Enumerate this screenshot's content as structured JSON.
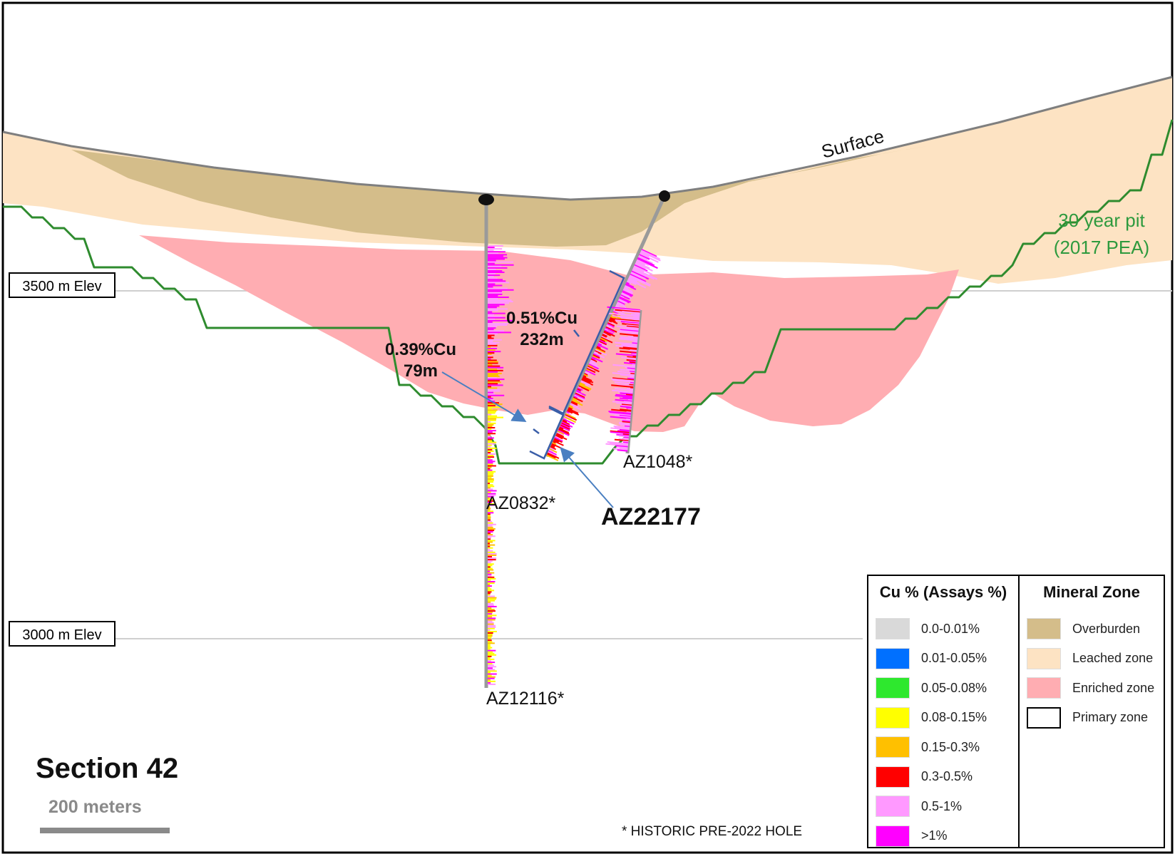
{
  "section_title": "Section 42",
  "scale_bar_label": "200 meters",
  "surface_label": "Surface",
  "pit_label_line1": "30 year pit",
  "pit_label_line2": "(2017 PEA)",
  "elevation_labels": [
    "3500 m Elev",
    "3000 m Elev"
  ],
  "holes": {
    "az0832": "AZ0832*",
    "az12116": "AZ12116*",
    "az1048": "AZ1048*",
    "az22177": "AZ22177"
  },
  "intercepts": {
    "upper": {
      "grade": "0.51%Cu",
      "length": "232m"
    },
    "lower": {
      "grade": "0.39%Cu",
      "length": "79m"
    }
  },
  "footnote": "* HISTORIC PRE-2022 HOLE",
  "legend": {
    "cu_title": "Cu % (Assays %)",
    "cu_items": [
      {
        "label": "0.0-0.01%",
        "color": "#d9d9d9"
      },
      {
        "label": "0.01-0.05%",
        "color": "#0070ff"
      },
      {
        "label": "0.05-0.08%",
        "color": "#2ee82e"
      },
      {
        "label": "0.08-0.15%",
        "color": "#ffff00"
      },
      {
        "label": "0.15-0.3%",
        "color": "#ffc000"
      },
      {
        "label": "0.3-0.5%",
        "color": "#ff0000"
      },
      {
        "label": "0.5-1%",
        "color": "#ff99ff"
      },
      {
        "label": ">1%",
        "color": "#ff00ff"
      }
    ],
    "zone_title": "Mineral Zone",
    "zone_items": [
      {
        "label": "Overburden",
        "color": "#d4bd8a"
      },
      {
        "label": "Leached zone",
        "color": "#fde3c3"
      },
      {
        "label": "Enriched zone",
        "color": "#ffadb2"
      },
      {
        "label": "Primary zone",
        "color": "#ffffff"
      }
    ]
  },
  "colors": {
    "pit_line": "#2e8b2e",
    "annotation_arrow": "#4a7fc1",
    "surface_line": "#7f7f7f"
  }
}
